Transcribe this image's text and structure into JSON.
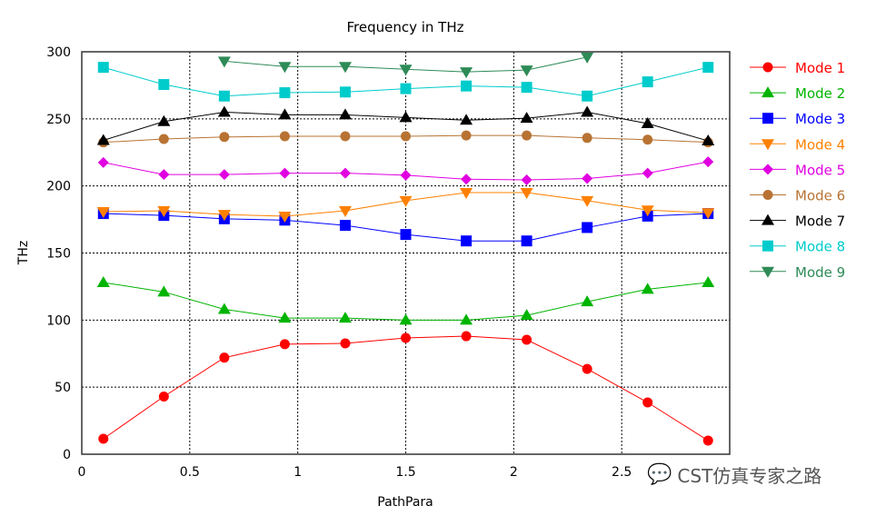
{
  "chart_data": {
    "type": "line",
    "title": "Frequency in THz",
    "xlabel": "PathPara",
    "ylabel": "THz",
    "xlim": [
      0,
      3
    ],
    "ylim": [
      0,
      300
    ],
    "xticks": [
      "0",
      "0.5",
      "1",
      "1.5",
      "2",
      "2.5"
    ],
    "yticks": [
      "0",
      "50",
      "100",
      "150",
      "200",
      "250",
      "300"
    ],
    "grid": true,
    "legend_position": "right",
    "x": [
      0.1,
      0.38,
      0.66,
      0.94,
      1.22,
      1.5,
      1.78,
      2.06,
      2.34,
      2.62,
      2.9
    ],
    "series": [
      {
        "name": "Mode 1",
        "color": "#ff0000",
        "marker": "circle",
        "values": [
          11.5,
          43,
          72,
          82,
          82.6,
          86.7,
          88,
          85.3,
          63.6,
          38.6,
          10.2
        ]
      },
      {
        "name": "Mode 2",
        "color": "#00b400",
        "marker": "triangle-up",
        "values": [
          128,
          121,
          108,
          101.5,
          101.5,
          100,
          100,
          103.5,
          113.7,
          123,
          128
        ]
      },
      {
        "name": "Mode 3",
        "color": "#0000ff",
        "marker": "square",
        "values": [
          179.4,
          178,
          175.5,
          174.5,
          170.6,
          163.8,
          159,
          159,
          169,
          177.5,
          179.4
        ]
      },
      {
        "name": "Mode 4",
        "color": "#ff8000",
        "marker": "triangle-down",
        "values": [
          180.8,
          181.5,
          178.7,
          177.4,
          181.5,
          189,
          195,
          195,
          189,
          182,
          180
        ]
      },
      {
        "name": "Mode 5",
        "color": "#e000e0",
        "marker": "diamond",
        "values": [
          217.5,
          208.5,
          208.5,
          209.5,
          209.5,
          208,
          205,
          204.5,
          205.5,
          209.5,
          218
        ]
      },
      {
        "name": "Mode 6",
        "color": "#b87333",
        "marker": "circle",
        "values": [
          232.5,
          235,
          236.5,
          237,
          237,
          237,
          237.6,
          237.6,
          235.8,
          234.5,
          232.5
        ]
      },
      {
        "name": "Mode 7",
        "color": "#000000",
        "marker": "triangle-up",
        "values": [
          234,
          248,
          255,
          253,
          253,
          251,
          249,
          250.5,
          255,
          246.5,
          233.6
        ]
      },
      {
        "name": "Mode 8",
        "color": "#00cccc",
        "marker": "square",
        "values": [
          288.4,
          275.6,
          267,
          269.5,
          270,
          272.5,
          274.5,
          273.5,
          267,
          277.6,
          288.4
        ]
      },
      {
        "name": "Mode 9",
        "color": "#2e8b57",
        "marker": "triangle-down",
        "values": [
          null,
          null,
          293,
          289,
          289,
          287,
          285,
          286.4,
          296,
          null,
          null
        ]
      }
    ]
  },
  "watermark": "CST仿真专家之路"
}
